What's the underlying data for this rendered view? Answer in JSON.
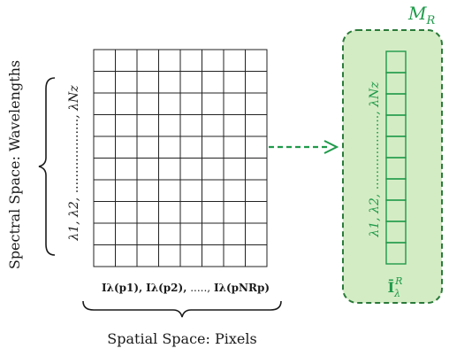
{
  "diagram": {
    "matrix_label": "M_R",
    "matrix_label_main": "M",
    "matrix_label_sub": "R",
    "y_axis_title": "Spectral Space: Wavelengths",
    "x_axis_title": "Spatial Space: Pixels",
    "wavelength_labels": "λ1, λ2, ..................., λNz",
    "wavelength_label_start": "λ1, λ2, ",
    "wavelength_label_dots": "...................",
    "wavelength_label_end": ", λNz",
    "pixel_labels": "Iλ(p1), Iλ(p2), ....., Iλ(pNRp)",
    "pixel_label_1": "Iλ(p1),",
    "pixel_label_2": "Iλ(p2),",
    "pixel_label_dots": ".....,",
    "pixel_label_last": "Iλ(pNRp)",
    "mean_vector_label": "Ī_λ^R",
    "mean_vector_main": "Ī",
    "mean_vector_sub": "λ",
    "mean_vector_sup": "R",
    "grid": {
      "rows": 10,
      "cols": 8
    },
    "vector": {
      "rows": 10
    },
    "colors": {
      "accent_green": "#1f9a4a",
      "box_fill": "#d4ecc4",
      "box_stroke": "#2a7a3a",
      "grid_line": "#222222",
      "text": "#1a1a1a"
    }
  }
}
